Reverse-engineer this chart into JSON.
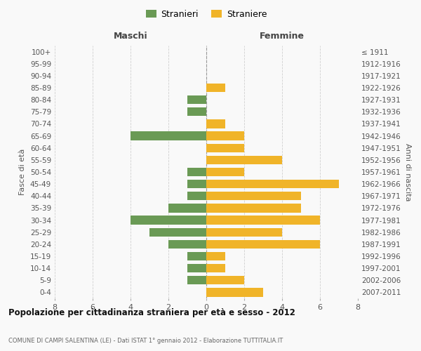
{
  "age_groups": [
    "100+",
    "95-99",
    "90-94",
    "85-89",
    "80-84",
    "75-79",
    "70-74",
    "65-69",
    "60-64",
    "55-59",
    "50-54",
    "45-49",
    "40-44",
    "35-39",
    "30-34",
    "25-29",
    "20-24",
    "15-19",
    "10-14",
    "5-9",
    "0-4"
  ],
  "birth_years": [
    "≤ 1911",
    "1912-1916",
    "1917-1921",
    "1922-1926",
    "1927-1931",
    "1932-1936",
    "1937-1941",
    "1942-1946",
    "1947-1951",
    "1952-1956",
    "1957-1961",
    "1962-1966",
    "1967-1971",
    "1972-1976",
    "1977-1981",
    "1982-1986",
    "1987-1991",
    "1992-1996",
    "1997-2001",
    "2002-2006",
    "2007-2011"
  ],
  "maschi": [
    0,
    0,
    0,
    0,
    1,
    1,
    0,
    4,
    0,
    0,
    1,
    1,
    1,
    2,
    4,
    3,
    2,
    1,
    1,
    1,
    0
  ],
  "femmine": [
    0,
    0,
    0,
    1,
    0,
    0,
    1,
    2,
    2,
    4,
    2,
    7,
    5,
    5,
    6,
    4,
    6,
    1,
    1,
    2,
    3
  ],
  "maschi_color": "#6a9a55",
  "femmine_color": "#f0b429",
  "title": "Popolazione per cittadinanza straniera per età e sesso - 2012",
  "subtitle": "COMUNE DI CAMPI SALENTINA (LE) - Dati ISTAT 1° gennaio 2012 - Elaborazione TUTTITALIA.IT",
  "header_left": "Maschi",
  "header_right": "Femmine",
  "ylabel_left": "Fasce di età",
  "ylabel_right": "Anni di nascita",
  "legend_maschi": "Stranieri",
  "legend_femmine": "Straniere",
  "xlim": 8,
  "background_color": "#f9f9f9",
  "grid_color": "#d0d0d0"
}
